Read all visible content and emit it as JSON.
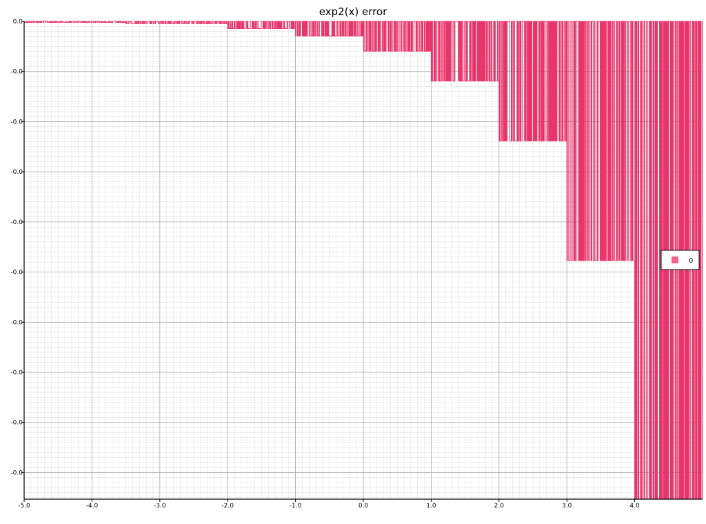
{
  "chart_data": {
    "type": "line",
    "title": "exp2(x) error",
    "xlabel": "",
    "ylabel": "",
    "xlim": [
      -5.0,
      5.0
    ],
    "ylim": [
      -1.906e-07,
      0.0
    ],
    "grid": true,
    "legend_position": "right",
    "x_ticks": [
      -5.0,
      -4.0,
      -3.0,
      -2.0,
      -1.0,
      0.0,
      1.0,
      2.0,
      3.0,
      4.0
    ],
    "x_tick_labels": [
      "-5.0",
      "-4.0",
      "-3.0",
      "-2.0",
      "-1.0",
      "0.0",
      "1.0",
      "2.0",
      "3.0",
      "4.0"
    ],
    "y_ticks": [
      0.0,
      -2e-08,
      -4e-08,
      -6e-08,
      -8e-08,
      -1e-07,
      -1.2e-07,
      -1.4e-07,
      -1.6e-07,
      -1.8e-07
    ],
    "y_tick_labels": [
      "0.0",
      "-0.0",
      "-0.0",
      "-0.0",
      "-0.0",
      "-0.0",
      "-0.0",
      "-0.0",
      "-0.0",
      "-0.0"
    ],
    "series": [
      {
        "name": "0",
        "color": "#e8356b",
        "pattern": "step_error",
        "segments": [
          {
            "x_range": [
              -5.0,
              -2.0
            ],
            "values": [
              0.0,
              -4e-10,
              -9e-10
            ]
          },
          {
            "x_range": [
              -2.0,
              -1.0
            ],
            "values": [
              0.0,
              -2.9e-09
            ]
          },
          {
            "x_range": [
              -1.0,
              0.0
            ],
            "values": [
              0.0,
              -5.8e-09
            ]
          },
          {
            "x_range": [
              0.0,
              1.0
            ],
            "values": [
              0.0,
              -1.19e-08
            ]
          },
          {
            "x_range": [
              1.0,
              2.0
            ],
            "values": [
              0.0,
              -2.38e-08
            ]
          },
          {
            "x_range": [
              2.0,
              3.0
            ],
            "values": [
              0.0,
              -4.77e-08
            ]
          },
          {
            "x_range": [
              3.0,
              4.0
            ],
            "values": [
              0.0,
              -9.54e-08
            ]
          },
          {
            "x_range": [
              4.0,
              5.0
            ],
            "values": [
              0.0,
              -1.906e-07
            ]
          }
        ]
      }
    ]
  }
}
